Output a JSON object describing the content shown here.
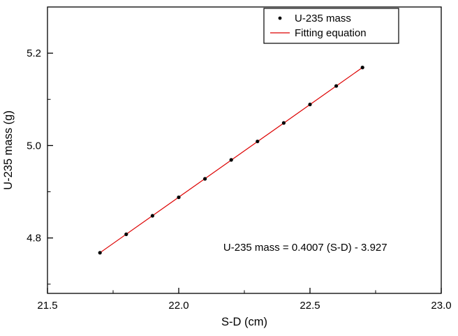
{
  "chart_data": {
    "type": "scatter",
    "title": "",
    "xlabel": "S-D (cm)",
    "ylabel": "U-235 mass (g)",
    "xlim": [
      21.5,
      23.0
    ],
    "ylim": [
      4.68,
      5.3
    ],
    "x_ticks": [
      21.5,
      22.0,
      22.5,
      23.0
    ],
    "x_tick_labels": [
      "21.5",
      "22.0",
      "22.5",
      "23.0"
    ],
    "x_minor_ticks": [
      21.75,
      22.25,
      22.75
    ],
    "y_ticks": [
      4.8,
      5.0,
      5.2
    ],
    "y_tick_labels": [
      "4.8",
      "5.0",
      "5.2"
    ],
    "y_minor_ticks": [
      4.7,
      4.9,
      5.1,
      5.3
    ],
    "grid": false,
    "series": [
      {
        "name": "U-235 mass",
        "kind": "scatter",
        "marker": "dot",
        "color": "#000000",
        "x": [
          21.7,
          21.8,
          21.9,
          22.0,
          22.1,
          22.2,
          22.3,
          22.4,
          22.5,
          22.6,
          22.7
        ],
        "y": [
          4.768,
          4.808,
          4.848,
          4.888,
          4.928,
          4.969,
          5.009,
          5.049,
          5.089,
          5.129,
          5.169
        ]
      },
      {
        "name": "Fitting equation",
        "kind": "line",
        "color": "#dd0000",
        "x": [
          21.7,
          22.7
        ],
        "y": [
          4.768,
          5.169
        ]
      }
    ],
    "legend": {
      "position": "top-center",
      "entries": [
        {
          "label": "U-235 mass",
          "marker": "dot",
          "color": "#000000"
        },
        {
          "label": "Fitting equation",
          "marker": "line",
          "color": "#dd0000"
        }
      ]
    },
    "annotation": {
      "text": "U-235 mass = 0.4007 (S-D) - 3.927",
      "x": 22.17,
      "y": 4.772
    },
    "fit": {
      "slope": 0.4007,
      "intercept": -3.927
    }
  }
}
